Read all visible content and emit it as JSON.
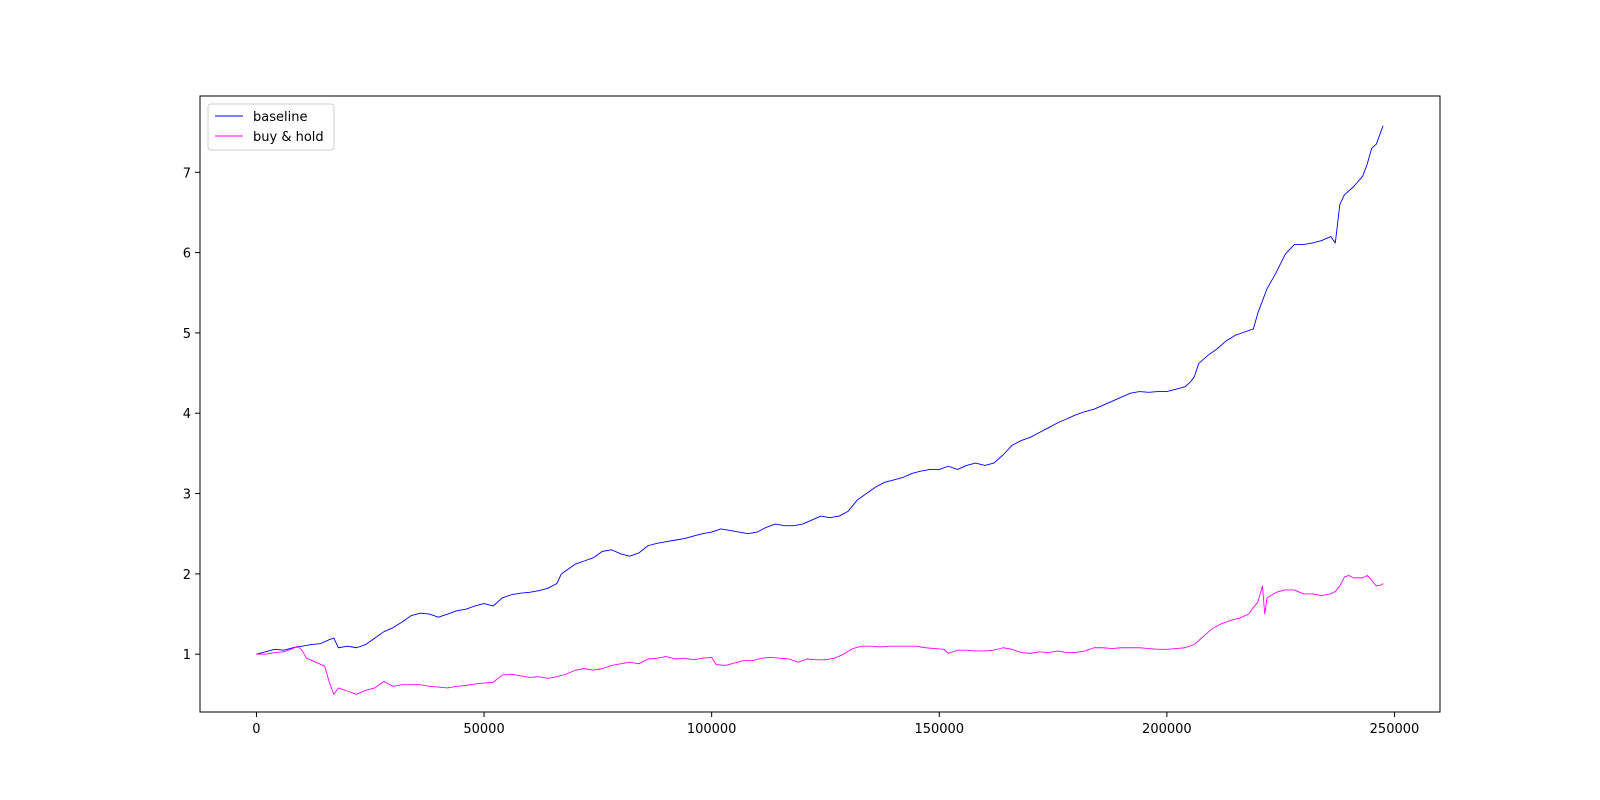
{
  "chart_data": {
    "type": "line",
    "title": "",
    "xlabel": "",
    "ylabel": "",
    "xlim": [
      -12400,
      260000
    ],
    "ylim": [
      0.28,
      7.95
    ],
    "xticks": [
      0,
      50000,
      100000,
      150000,
      200000,
      250000
    ],
    "yticks": [
      1,
      2,
      3,
      4,
      5,
      6,
      7
    ],
    "legend": {
      "placement": "top-left"
    },
    "grid": false,
    "series": [
      {
        "name": "baseline",
        "color": "#0000ff",
        "points": [
          [
            0,
            1.0
          ],
          [
            2000,
            1.03
          ],
          [
            4000,
            1.06
          ],
          [
            6000,
            1.05
          ],
          [
            8000,
            1.08
          ],
          [
            10000,
            1.1
          ],
          [
            12000,
            1.12
          ],
          [
            14000,
            1.13
          ],
          [
            16000,
            1.18
          ],
          [
            17000,
            1.2
          ],
          [
            18000,
            1.08
          ],
          [
            20000,
            1.1
          ],
          [
            22000,
            1.08
          ],
          [
            24000,
            1.12
          ],
          [
            26000,
            1.2
          ],
          [
            28000,
            1.28
          ],
          [
            30000,
            1.33
          ],
          [
            32000,
            1.4
          ],
          [
            34000,
            1.48
          ],
          [
            36000,
            1.51
          ],
          [
            38000,
            1.5
          ],
          [
            40000,
            1.46
          ],
          [
            42000,
            1.5
          ],
          [
            44000,
            1.54
          ],
          [
            46000,
            1.56
          ],
          [
            48000,
            1.6
          ],
          [
            50000,
            1.63
          ],
          [
            52000,
            1.6
          ],
          [
            54000,
            1.7
          ],
          [
            56000,
            1.74
          ],
          [
            58000,
            1.76
          ],
          [
            60000,
            1.77
          ],
          [
            62000,
            1.79
          ],
          [
            64000,
            1.82
          ],
          [
            66000,
            1.88
          ],
          [
            67000,
            2.0
          ],
          [
            70000,
            2.12
          ],
          [
            72000,
            2.16
          ],
          [
            74000,
            2.2
          ],
          [
            76000,
            2.28
          ],
          [
            78000,
            2.3
          ],
          [
            80000,
            2.25
          ],
          [
            82000,
            2.22
          ],
          [
            84000,
            2.26
          ],
          [
            86000,
            2.35
          ],
          [
            88000,
            2.38
          ],
          [
            90000,
            2.4
          ],
          [
            92000,
            2.42
          ],
          [
            94000,
            2.44
          ],
          [
            96000,
            2.47
          ],
          [
            98000,
            2.5
          ],
          [
            100000,
            2.52
          ],
          [
            102000,
            2.56
          ],
          [
            104000,
            2.54
          ],
          [
            106000,
            2.52
          ],
          [
            108000,
            2.5
          ],
          [
            110000,
            2.52
          ],
          [
            112000,
            2.58
          ],
          [
            114000,
            2.62
          ],
          [
            116000,
            2.6
          ],
          [
            118000,
            2.6
          ],
          [
            120000,
            2.62
          ],
          [
            122000,
            2.67
          ],
          [
            124000,
            2.72
          ],
          [
            126000,
            2.7
          ],
          [
            128000,
            2.72
          ],
          [
            130000,
            2.78
          ],
          [
            132000,
            2.92
          ],
          [
            134000,
            3.0
          ],
          [
            136000,
            3.08
          ],
          [
            138000,
            3.14
          ],
          [
            140000,
            3.17
          ],
          [
            142000,
            3.2
          ],
          [
            144000,
            3.25
          ],
          [
            146000,
            3.28
          ],
          [
            148000,
            3.3
          ],
          [
            150000,
            3.3
          ],
          [
            152000,
            3.34
          ],
          [
            154000,
            3.3
          ],
          [
            156000,
            3.35
          ],
          [
            158000,
            3.38
          ],
          [
            160000,
            3.35
          ],
          [
            162000,
            3.38
          ],
          [
            164000,
            3.48
          ],
          [
            166000,
            3.6
          ],
          [
            168000,
            3.66
          ],
          [
            170000,
            3.7
          ],
          [
            172000,
            3.76
          ],
          [
            174000,
            3.82
          ],
          [
            176000,
            3.88
          ],
          [
            178000,
            3.93
          ],
          [
            180000,
            3.98
          ],
          [
            182000,
            4.02
          ],
          [
            184000,
            4.05
          ],
          [
            186000,
            4.1
          ],
          [
            188000,
            4.15
          ],
          [
            190000,
            4.2
          ],
          [
            192000,
            4.25
          ],
          [
            194000,
            4.27
          ],
          [
            196000,
            4.26
          ],
          [
            198000,
            4.27
          ],
          [
            200000,
            4.27
          ],
          [
            202000,
            4.3
          ],
          [
            204000,
            4.33
          ],
          [
            205000,
            4.38
          ],
          [
            206000,
            4.45
          ],
          [
            207000,
            4.62
          ],
          [
            209000,
            4.72
          ],
          [
            211000,
            4.8
          ],
          [
            213000,
            4.9
          ],
          [
            215000,
            4.97
          ],
          [
            217000,
            5.01
          ],
          [
            219000,
            5.05
          ],
          [
            220000,
            5.25
          ],
          [
            221000,
            5.4
          ],
          [
            222000,
            5.55
          ],
          [
            224000,
            5.75
          ],
          [
            226000,
            5.98
          ],
          [
            228000,
            6.1
          ],
          [
            230000,
            6.1
          ],
          [
            232000,
            6.12
          ],
          [
            234000,
            6.15
          ],
          [
            236000,
            6.2
          ],
          [
            237000,
            6.12
          ],
          [
            238000,
            6.6
          ],
          [
            239000,
            6.72
          ],
          [
            241000,
            6.82
          ],
          [
            243000,
            6.95
          ],
          [
            244000,
            7.1
          ],
          [
            245000,
            7.3
          ],
          [
            246000,
            7.35
          ],
          [
            247500,
            7.58
          ]
        ]
      },
      {
        "name": "buy & hold",
        "color": "#ff00ff",
        "points": [
          [
            0,
            1.0
          ],
          [
            2000,
            1.0
          ],
          [
            4000,
            1.02
          ],
          [
            6000,
            1.03
          ],
          [
            8000,
            1.07
          ],
          [
            9000,
            1.1
          ],
          [
            10000,
            1.05
          ],
          [
            11000,
            0.95
          ],
          [
            13000,
            0.9
          ],
          [
            15000,
            0.85
          ],
          [
            16000,
            0.65
          ],
          [
            17000,
            0.5
          ],
          [
            18000,
            0.58
          ],
          [
            20000,
            0.54
          ],
          [
            22000,
            0.5
          ],
          [
            24000,
            0.55
          ],
          [
            26000,
            0.58
          ],
          [
            28000,
            0.66
          ],
          [
            30000,
            0.6
          ],
          [
            32000,
            0.62
          ],
          [
            34000,
            0.62
          ],
          [
            36000,
            0.62
          ],
          [
            38000,
            0.6
          ],
          [
            40000,
            0.59
          ],
          [
            42000,
            0.58
          ],
          [
            44000,
            0.6
          ],
          [
            46000,
            0.61
          ],
          [
            48000,
            0.63
          ],
          [
            50000,
            0.64
          ],
          [
            52000,
            0.65
          ],
          [
            54000,
            0.74
          ],
          [
            56000,
            0.75
          ],
          [
            58000,
            0.73
          ],
          [
            60000,
            0.71
          ],
          [
            62000,
            0.72
          ],
          [
            64000,
            0.7
          ],
          [
            66000,
            0.72
          ],
          [
            68000,
            0.75
          ],
          [
            70000,
            0.8
          ],
          [
            72000,
            0.82
          ],
          [
            74000,
            0.8
          ],
          [
            76000,
            0.82
          ],
          [
            78000,
            0.86
          ],
          [
            80000,
            0.88
          ],
          [
            82000,
            0.9
          ],
          [
            84000,
            0.88
          ],
          [
            86000,
            0.94
          ],
          [
            88000,
            0.95
          ],
          [
            90000,
            0.97
          ],
          [
            92000,
            0.94
          ],
          [
            94000,
            0.95
          ],
          [
            96000,
            0.93
          ],
          [
            98000,
            0.95
          ],
          [
            100000,
            0.96
          ],
          [
            101000,
            0.87
          ],
          [
            103000,
            0.86
          ],
          [
            105000,
            0.89
          ],
          [
            107000,
            0.92
          ],
          [
            109000,
            0.92
          ],
          [
            111000,
            0.95
          ],
          [
            113000,
            0.96
          ],
          [
            115000,
            0.95
          ],
          [
            117000,
            0.94
          ],
          [
            119000,
            0.9
          ],
          [
            121000,
            0.94
          ],
          [
            123000,
            0.93
          ],
          [
            125000,
            0.93
          ],
          [
            127000,
            0.95
          ],
          [
            129000,
            1.0
          ],
          [
            131000,
            1.07
          ],
          [
            133000,
            1.1
          ],
          [
            135000,
            1.1
          ],
          [
            137000,
            1.09
          ],
          [
            139000,
            1.1
          ],
          [
            141000,
            1.1
          ],
          [
            143000,
            1.1
          ],
          [
            145000,
            1.1
          ],
          [
            147000,
            1.08
          ],
          [
            149000,
            1.07
          ],
          [
            151000,
            1.06
          ],
          [
            152000,
            1.01
          ],
          [
            154000,
            1.05
          ],
          [
            156000,
            1.05
          ],
          [
            158000,
            1.04
          ],
          [
            160000,
            1.04
          ],
          [
            162000,
            1.05
          ],
          [
            164000,
            1.08
          ],
          [
            166000,
            1.06
          ],
          [
            168000,
            1.02
          ],
          [
            170000,
            1.01
          ],
          [
            172000,
            1.03
          ],
          [
            174000,
            1.02
          ],
          [
            176000,
            1.04
          ],
          [
            178000,
            1.02
          ],
          [
            180000,
            1.02
          ],
          [
            182000,
            1.04
          ],
          [
            184000,
            1.08
          ],
          [
            186000,
            1.08
          ],
          [
            188000,
            1.07
          ],
          [
            190000,
            1.08
          ],
          [
            192000,
            1.08
          ],
          [
            194000,
            1.08
          ],
          [
            196000,
            1.07
          ],
          [
            198000,
            1.06
          ],
          [
            200000,
            1.06
          ],
          [
            202000,
            1.07
          ],
          [
            204000,
            1.08
          ],
          [
            206000,
            1.12
          ],
          [
            208000,
            1.22
          ],
          [
            210000,
            1.32
          ],
          [
            212000,
            1.38
          ],
          [
            214000,
            1.42
          ],
          [
            216000,
            1.45
          ],
          [
            218000,
            1.5
          ],
          [
            219000,
            1.58
          ],
          [
            220000,
            1.65
          ],
          [
            221000,
            1.85
          ],
          [
            221500,
            1.5
          ],
          [
            222000,
            1.7
          ],
          [
            224000,
            1.77
          ],
          [
            226000,
            1.8
          ],
          [
            228000,
            1.8
          ],
          [
            230000,
            1.75
          ],
          [
            232000,
            1.75
          ],
          [
            234000,
            1.73
          ],
          [
            236000,
            1.75
          ],
          [
            237000,
            1.78
          ],
          [
            238000,
            1.85
          ],
          [
            239000,
            1.96
          ],
          [
            240000,
            1.98
          ],
          [
            241000,
            1.95
          ],
          [
            243000,
            1.95
          ],
          [
            244000,
            1.98
          ],
          [
            245000,
            1.92
          ],
          [
            246000,
            1.85
          ],
          [
            247000,
            1.86
          ],
          [
            247500,
            1.88
          ]
        ]
      }
    ]
  }
}
